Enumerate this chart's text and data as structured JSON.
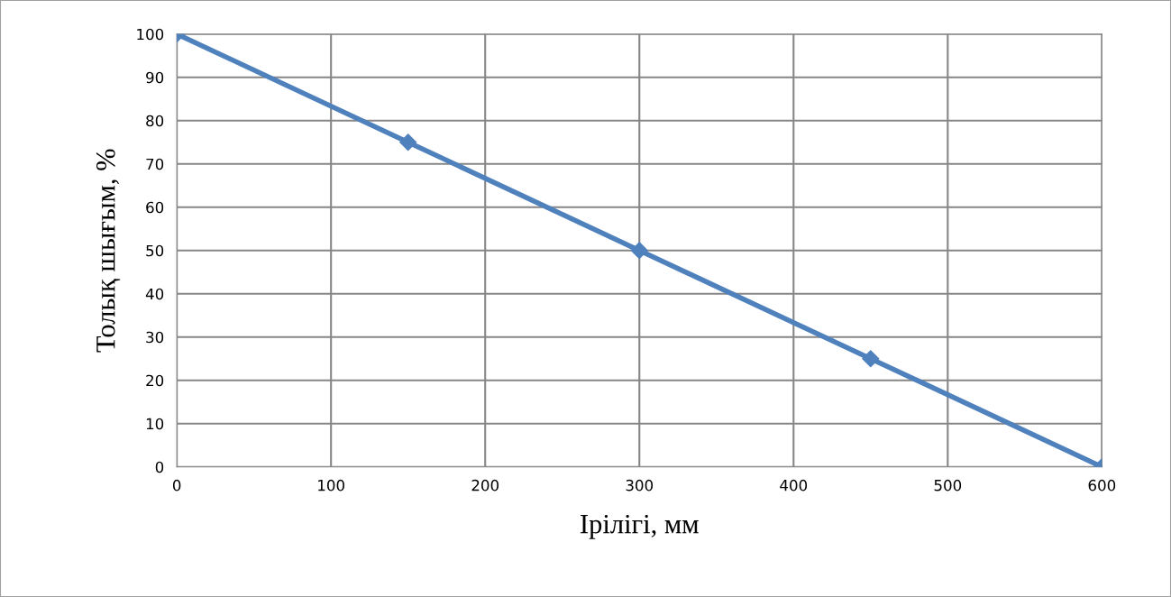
{
  "chart_data": {
    "type": "line",
    "xlabel": "Ірілігі, мм",
    "ylabel": "Толық шығым, %",
    "x": [
      0,
      150,
      300,
      450,
      600
    ],
    "series": [
      {
        "color": "#4f81bd",
        "values": [
          100,
          75,
          50,
          25,
          0
        ]
      }
    ],
    "xlim": [
      0,
      600
    ],
    "xticks": [
      0,
      100,
      200,
      300,
      400,
      500,
      600
    ],
    "ylim": [
      0,
      100
    ],
    "yticks": [
      0,
      10,
      20,
      30,
      40,
      50,
      60,
      70,
      80,
      90,
      100
    ],
    "grid": true,
    "marker": "diamond",
    "line_style": "solid",
    "legend": false
  }
}
